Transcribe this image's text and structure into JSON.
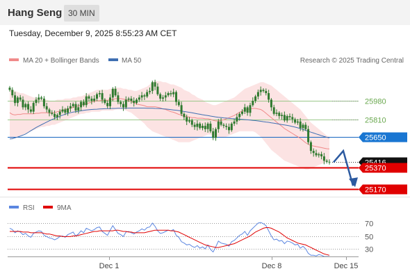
{
  "header": {
    "title": "Hang Seng",
    "timeframe": "30 MIN",
    "datetime": "Tuesday, December 9, 2025 8:55:23 AM CET"
  },
  "legend": {
    "ma20": "MA 20 + Bollinger Bands",
    "ma50": "MA 50",
    "credit": "Research © 2025 Trading Central",
    "rsi": "RSI",
    "rsi_ma": "9MA"
  },
  "colors": {
    "ma20": "#f08a8a",
    "bands": "#fbdada",
    "ma50": "#3f6fb2",
    "candle": "#2f7a2f",
    "resistance": "#9bc88b",
    "pivot": "#1565c0",
    "support": "#e00000",
    "arrow": "#2c5aa0",
    "rsi": "#5b86e0",
    "rsi_ma": "#e00000"
  },
  "chart_data": [
    {
      "type": "candlestick",
      "title": "Hang Seng",
      "ylim": [
        25100,
        26250
      ],
      "price_levels": [
        {
          "value": 25980,
          "label": "25980",
          "kind": "resistance"
        },
        {
          "value": 25810,
          "label": "25810",
          "kind": "resistance"
        },
        {
          "value": 25650,
          "label": "25650",
          "kind": "pivot"
        },
        {
          "value": 25416,
          "label": "25416",
          "kind": "last"
        },
        {
          "value": 25370,
          "label": "25370",
          "kind": "support"
        },
        {
          "value": 25170,
          "label": "25170",
          "kind": "support"
        }
      ],
      "close": [
        26080,
        26030,
        25960,
        26010,
        25990,
        25920,
        25950,
        25900,
        25880,
        25960,
        25990,
        26010,
        26000,
        25930,
        25900,
        25870,
        25860,
        25830,
        25850,
        25880,
        25900,
        25870,
        25910,
        25930,
        25950,
        25890,
        25920,
        25970,
        25940,
        26020,
        26000,
        25980,
        26000,
        26040,
        26050,
        25990,
        25960,
        25930,
        26010,
        26090,
        26030,
        25970,
        25950,
        25920,
        25990,
        26000,
        25980,
        25960,
        25990,
        26010,
        26030,
        26020,
        26060,
        26070,
        26150,
        26110,
        26040,
        26000,
        26010,
        26030,
        26050,
        26040,
        26060,
        25970,
        25940,
        25860,
        25830,
        25790,
        25800,
        25760,
        25740,
        25770,
        25730,
        25750,
        25720,
        25770,
        25700,
        25640,
        25720,
        25790,
        25760,
        25750,
        25740,
        25710,
        25770,
        25790,
        25830,
        25860,
        25880,
        25920,
        25870,
        25940,
        25980,
        26020,
        26060,
        26080,
        26070,
        26050,
        25990,
        25920,
        25860,
        25870,
        25840,
        25850,
        25800,
        25840,
        25830,
        25810,
        25780,
        25790,
        25730,
        25760,
        25720,
        25600,
        25520,
        25500,
        25480,
        25490,
        25470,
        25430,
        25420,
        25416
      ],
      "bb_upper": [
        26090,
        26080,
        26070,
        26060,
        26050,
        26050,
        26040,
        26030,
        26020,
        26010,
        26010,
        26000,
        26000,
        25990,
        25990,
        25980,
        25980,
        25980,
        25990,
        25990,
        25990,
        26000,
        26000,
        26000,
        26010,
        26010,
        26020,
        26020,
        26030,
        26040,
        26050,
        26060,
        26070,
        26080,
        26080,
        26080,
        26080,
        26080,
        26090,
        26090,
        26100,
        26100,
        26100,
        26090,
        26090,
        26080,
        26080,
        26070,
        26070,
        26080,
        26090,
        26100,
        26110,
        26130,
        26150,
        26160,
        26160,
        26160,
        26150,
        26150,
        26140,
        26130,
        26130,
        26120,
        26110,
        26100,
        26080,
        26070,
        26060,
        26040,
        26030,
        26010,
        26000,
        25990,
        25970,
        25960,
        25950,
        25940,
        25940,
        25950,
        25960,
        25970,
        25980,
        25990,
        26000,
        26010,
        26030,
        26050,
        26070,
        26090,
        26100,
        26110,
        26120,
        26130,
        26140,
        26150,
        26150,
        26140,
        26130,
        26120,
        26100,
        26080,
        26060,
        26040,
        26020,
        26000,
        25980,
        25960,
        25940,
        25920,
        25900,
        25870,
        25840,
        25810,
        25780,
        25760,
        25740,
        25720,
        25700,
        25680,
        25660,
        25650
      ],
      "bb_lower": [
        25640,
        25630,
        25640,
        25650,
        25660,
        25670,
        25680,
        25690,
        25700,
        25710,
        25720,
        25730,
        25740,
        25740,
        25750,
        25750,
        25760,
        25760,
        25770,
        25780,
        25790,
        25800,
        25810,
        25820,
        25830,
        25840,
        25850,
        25860,
        25860,
        25870,
        25870,
        25880,
        25880,
        25880,
        25880,
        25890,
        25890,
        25890,
        25890,
        25890,
        25900,
        25900,
        25900,
        25900,
        25890,
        25880,
        25870,
        25850,
        25830,
        25810,
        25790,
        25770,
        25740,
        25720,
        25700,
        25690,
        25680,
        25670,
        25660,
        25650,
        25640,
        25630,
        25620,
        25610,
        25600,
        25600,
        25600,
        25600,
        25600,
        25610,
        25620,
        25630,
        25640,
        25650,
        25660,
        25670,
        25670,
        25660,
        25650,
        25640,
        25640,
        25640,
        25650,
        25660,
        25670,
        25680,
        25690,
        25700,
        25700,
        25700,
        25700,
        25700,
        25700,
        25690,
        25670,
        25650,
        25620,
        25590,
        25560,
        25530,
        25510,
        25490,
        25470,
        25450,
        25430,
        25420,
        25410,
        25400,
        25390,
        25380,
        25370,
        25360,
        25350,
        25350,
        25360,
        25370,
        25380,
        25390,
        25400,
        25410,
        25420,
        25425
      ],
      "ma20": [
        25870,
        25855,
        25850,
        25855,
        25855,
        25860,
        25860,
        25860,
        25860,
        25860,
        25865,
        25865,
        25870,
        25870,
        25870,
        25865,
        25870,
        25870,
        25880,
        25885,
        25890,
        25900,
        25905,
        25910,
        25920,
        25925,
        25935,
        25940,
        25945,
        25955,
        25960,
        25970,
        25975,
        25980,
        25980,
        25985,
        25985,
        25985,
        25990,
        25990,
        26000,
        26000,
        26000,
        25995,
        25990,
        25980,
        25975,
        25960,
        25950,
        25945,
        25940,
        25935,
        25925,
        25925,
        25925,
        25925,
        25920,
        25915,
        25905,
        25900,
        25890,
        25880,
        25875,
        25865,
        25855,
        25850,
        25840,
        25835,
        25830,
        25825,
        25825,
        25820,
        25820,
        25820,
        25815,
        25815,
        25810,
        25800,
        25795,
        25795,
        25800,
        25805,
        25815,
        25825,
        25835,
        25845,
        25860,
        25875,
        25885,
        25895,
        25900,
        25905,
        25910,
        25910,
        25905,
        25900,
        25885,
        25865,
        25845,
        25825,
        25805,
        25785,
        25765,
        25745,
        25725,
        25710,
        25695,
        25680,
        25665,
        25650,
        25635,
        25615,
        25595,
        25580,
        25570,
        25565,
        25560,
        25555,
        25550,
        25545,
        25540,
        25538
      ],
      "ma50": [
        25630,
        25632,
        25640,
        25648,
        25656,
        25665,
        25675,
        25690,
        25705,
        25720,
        25735,
        25748,
        25760,
        25772,
        25784,
        25796,
        25808,
        25818,
        25828,
        25838,
        25848,
        25856,
        25864,
        25870,
        25876,
        25880,
        25884,
        25888,
        25892,
        25895,
        25898,
        25900,
        25902,
        25903,
        25905,
        25906,
        25907,
        25908,
        25909,
        25910,
        25910,
        25911,
        25911,
        25912,
        25912,
        25913,
        25913,
        25913,
        25913,
        25913,
        25913,
        25913,
        25912,
        25912,
        25911,
        25910,
        25909,
        25908,
        25906,
        25904,
        25902,
        25899,
        25896,
        25893,
        25890,
        25886,
        25882,
        25878,
        25874,
        25870,
        25865,
        25860,
        25856,
        25852,
        25848,
        25844,
        25840,
        25836,
        25832,
        25829,
        25826,
        25823,
        25821,
        25819,
        25817,
        25815,
        25813,
        25811,
        25809,
        25807,
        25805,
        25803,
        25800,
        25798,
        25795,
        25792,
        25788,
        25785,
        25782,
        25778,
        25774,
        25770,
        25766,
        25762,
        25758,
        25754,
        25750,
        25744,
        25738,
        25732,
        25725,
        25717,
        25708,
        25700,
        25692,
        25684,
        25676,
        25668,
        25660,
        25652,
        25645,
        25640
      ]
    },
    {
      "type": "line",
      "title": "RSI",
      "ylim": [
        20,
        80
      ],
      "reference_levels": [
        70,
        50,
        30
      ],
      "x_tick_labels": [
        "Dec 1",
        "Dec 8",
        "Dec 15"
      ],
      "series": [
        {
          "name": "RSI",
          "values": [
            62,
            60,
            55,
            58,
            56,
            52,
            54,
            50,
            48,
            54,
            56,
            58,
            57,
            51,
            49,
            47,
            46,
            44,
            46,
            49,
            50,
            48,
            52,
            54,
            56,
            50,
            53,
            58,
            55,
            62,
            60,
            58,
            60,
            63,
            64,
            57,
            54,
            51,
            59,
            66,
            60,
            54,
            52,
            49,
            56,
            57,
            55,
            53,
            56,
            58,
            61,
            59,
            63,
            64,
            70,
            65,
            58,
            54,
            55,
            57,
            59,
            58,
            60,
            51,
            48,
            41,
            39,
            36,
            37,
            34,
            32,
            35,
            31,
            33,
            30,
            36,
            29,
            25,
            33,
            42,
            39,
            38,
            37,
            34,
            41,
            43,
            47,
            51,
            53,
            57,
            51,
            58,
            62,
            66,
            70,
            71,
            69,
            66,
            58,
            50,
            44,
            45,
            42,
            43,
            38,
            42,
            41,
            39,
            36,
            37,
            31,
            34,
            30,
            23,
            20,
            20,
            19,
            21,
            20,
            18,
            18,
            18
          ]
        },
        {
          "name": "9MA",
          "values": [
            57,
            57,
            57,
            57,
            57,
            56,
            56,
            56,
            55,
            55,
            55,
            55,
            55,
            54,
            53,
            53,
            52,
            51,
            50,
            50,
            49,
            49,
            49,
            49,
            50,
            50,
            51,
            52,
            53,
            54,
            55,
            56,
            57,
            57,
            58,
            58,
            58,
            58,
            58,
            58,
            59,
            59,
            58,
            57,
            57,
            56,
            56,
            55,
            55,
            55,
            55,
            55,
            56,
            57,
            58,
            59,
            59,
            59,
            59,
            59,
            59,
            58,
            58,
            57,
            56,
            54,
            52,
            50,
            48,
            46,
            44,
            42,
            40,
            38,
            36,
            35,
            34,
            33,
            32,
            32,
            33,
            34,
            35,
            36,
            37,
            38,
            40,
            42,
            44,
            46,
            48,
            50,
            53,
            56,
            58,
            60,
            62,
            63,
            63,
            62,
            60,
            58,
            56,
            53,
            50,
            47,
            45,
            43,
            41,
            39,
            38,
            37,
            36,
            34,
            32,
            30,
            28,
            26,
            24,
            22,
            21,
            20
          ]
        }
      ]
    }
  ]
}
